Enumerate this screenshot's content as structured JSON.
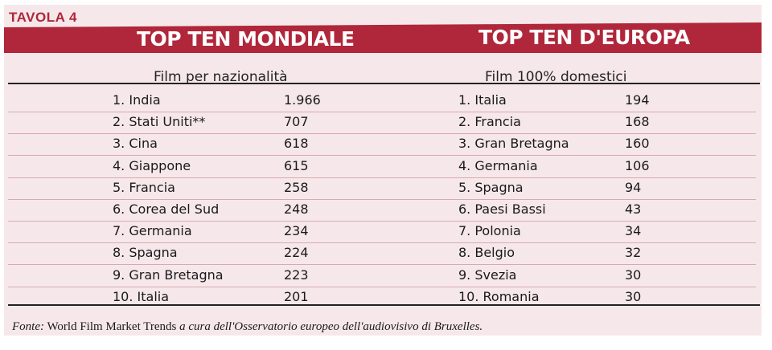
{
  "label": "TAVOLA 4",
  "left": {
    "title": "TOP TEN MONDIALE",
    "subtitle": "Film per nazionalità",
    "rows": [
      {
        "name": "1. India",
        "value": "1.966"
      },
      {
        "name": "2. Stati Uniti**",
        "value": "707"
      },
      {
        "name": "3. Cina",
        "value": "618"
      },
      {
        "name": "4. Giappone",
        "value": "615"
      },
      {
        "name": "5. Francia",
        "value": "258"
      },
      {
        "name": "6. Corea del Sud",
        "value": "248"
      },
      {
        "name": "7. Germania",
        "value": "234"
      },
      {
        "name": "8. Spagna",
        "value": "224"
      },
      {
        "name": "9. Gran Bretagna",
        "value": "223"
      },
      {
        "name": "10. Italia",
        "value": "201"
      }
    ]
  },
  "right": {
    "title": "TOP TEN D'EUROPA",
    "subtitle": "Film 100% domestici",
    "rows": [
      {
        "name": "1. Italia",
        "value": "194"
      },
      {
        "name": "2. Francia",
        "value": "168"
      },
      {
        "name": "3. Gran Bretagna",
        "value": "160"
      },
      {
        "name": "4. Germania",
        "value": "106"
      },
      {
        "name": "5. Spagna",
        "value": "94"
      },
      {
        "name": "6. Paesi Bassi",
        "value": "43"
      },
      {
        "name": "7. Polonia",
        "value": "34"
      },
      {
        "name": "8. Belgio",
        "value": "32"
      },
      {
        "name": "9. Svezia",
        "value": "30"
      },
      {
        "name": "10. Romania",
        "value": "30"
      }
    ]
  },
  "footer": {
    "label": "Fonte:",
    "source": "World Film Market Trends",
    "note": "a cura dell'Osservatorio europeo dell'audiovisivo di Bruxelles."
  },
  "colors": {
    "accent": "#b0263a",
    "panel": "#f6e8ea"
  }
}
